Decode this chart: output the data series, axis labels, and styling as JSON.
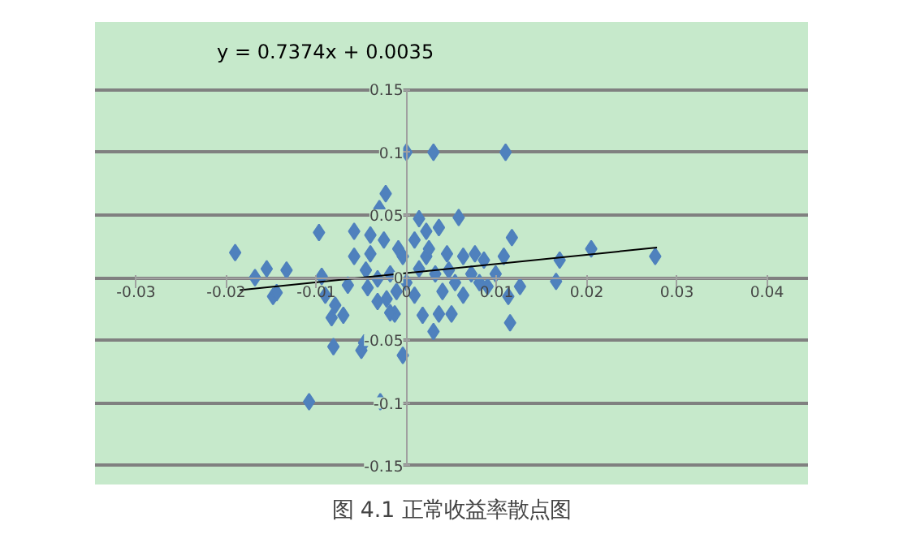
{
  "chart_data": {
    "type": "scatter",
    "title": "图 4.1 正常收益率散点图",
    "annotations": [
      "y = 0.7374x + 0.0035"
    ],
    "xlim": [
      -0.03,
      0.04
    ],
    "ylim": [
      -0.15,
      0.15
    ],
    "xticks": [
      -0.03,
      -0.02,
      -0.01,
      0,
      0.01,
      0.02,
      0.03,
      0.04
    ],
    "yticks": [
      -0.15,
      -0.1,
      -0.05,
      0,
      0.05,
      0.1,
      0.15
    ],
    "grid": "y",
    "series": [
      {
        "color": "#4f81bd",
        "marker": "diamond",
        "x": [
          0,
          0.003,
          0.011,
          -0.0023,
          -0.003,
          -0.019,
          -0.0097,
          -0.0058,
          -0.004,
          0.0058,
          0.0014,
          0.0117,
          0.0205,
          0.017,
          0.0276,
          0.0166,
          0.0126,
          0.0113,
          0.0115,
          0.009,
          -0.0168,
          -0.0155,
          -0.0133,
          -0.0148,
          -0.0144,
          -0.0094,
          -0.009,
          -0.0079,
          -0.007,
          -0.0083,
          -0.0081,
          -0.0047,
          -0.005,
          -0.0004,
          -0.0108,
          -0.0029,
          0.003,
          0.0018,
          0.0036,
          0.005,
          -0.0013,
          -0.0032,
          -0.0018,
          -0.0022,
          -0.0009,
          0.0009,
          0.0022,
          0.0036,
          0.0045,
          0.0063,
          0.0076,
          0.0086,
          0.0072,
          0.0054,
          0.0032,
          0.0014,
          0,
          -0.0018,
          -0.0032,
          -0.0045,
          -0.0058,
          -0.004,
          -0.0025,
          -0.0004,
          0.0022,
          0.004,
          0.0063,
          0.0081,
          0.0009,
          -0.0011,
          -0.0043,
          -0.0065,
          0.0099,
          0.0108,
          0.0047,
          0.0025
        ],
        "values": [
          0.1,
          0.1,
          0.1,
          0.067,
          0.055,
          0.02,
          0.036,
          0.037,
          0.034,
          0.048,
          0.047,
          0.032,
          0.023,
          0.014,
          0.017,
          -0.003,
          -0.007,
          -0.015,
          -0.036,
          -0.007,
          0,
          0.007,
          0.006,
          -0.015,
          -0.012,
          0.001,
          -0.014,
          -0.022,
          -0.03,
          -0.032,
          -0.055,
          -0.052,
          -0.058,
          -0.062,
          -0.099,
          -0.099,
          -0.043,
          -0.03,
          -0.029,
          -0.029,
          -0.029,
          -0.019,
          -0.028,
          -0.017,
          0.023,
          0.03,
          0.037,
          0.04,
          0.019,
          0.017,
          0.019,
          0.014,
          0.003,
          -0.004,
          0.003,
          0.007,
          -0.004,
          0.003,
          -0.001,
          0.006,
          0.017,
          0.019,
          0.03,
          0.017,
          0.017,
          -0.011,
          -0.014,
          -0.004,
          -0.014,
          -0.011,
          -0.008,
          -0.006,
          0.003,
          0.017,
          0.006,
          0.023
        ]
      },
      {
        "type": "line",
        "color": "#000000",
        "x": [
          -0.0185,
          0.0278
        ],
        "values": [
          -0.01,
          0.024
        ]
      }
    ]
  }
}
